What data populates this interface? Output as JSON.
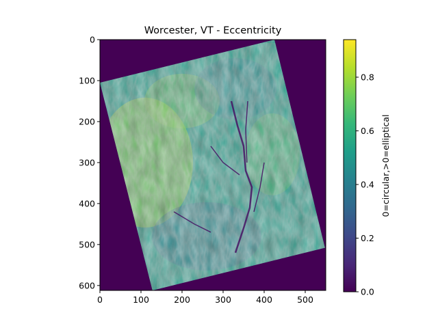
{
  "chart_data": {
    "type": "heatmap",
    "title": "Worcester, VT - Eccentricity",
    "x": {
      "lim": [
        0,
        550
      ],
      "ticks": [
        0,
        100,
        200,
        300,
        400,
        500
      ],
      "tick_labels": [
        "0",
        "100",
        "200",
        "300",
        "400",
        "500"
      ]
    },
    "y": {
      "lim": [
        0,
        612
      ],
      "inverted": true,
      "ticks": [
        0,
        100,
        200,
        300,
        400,
        500,
        600
      ],
      "tick_labels": [
        "0",
        "100",
        "200",
        "300",
        "400",
        "500",
        "600"
      ]
    },
    "valid_region_corners": [
      [
        0,
        105
      ],
      [
        425,
        0
      ],
      [
        548,
        508
      ],
      [
        128,
        612
      ]
    ],
    "nodata_value": 0.0,
    "colorbar": {
      "label": "0=circular,>0=elliptical",
      "lim": [
        0.0,
        0.94
      ],
      "ticks": [
        0.0,
        0.2,
        0.4,
        0.6,
        0.8
      ],
      "tick_labels": [
        "0.0",
        "0.2",
        "0.4",
        "0.6",
        "0.8"
      ],
      "colormap": "viridis",
      "colormap_stops": [
        "#440154",
        "#482878",
        "#3e4989",
        "#31688e",
        "#26828e",
        "#1f9e89",
        "#35b779",
        "#6ece58",
        "#b5de2b",
        "#fde725"
      ]
    },
    "grid": false,
    "legend": "none"
  }
}
